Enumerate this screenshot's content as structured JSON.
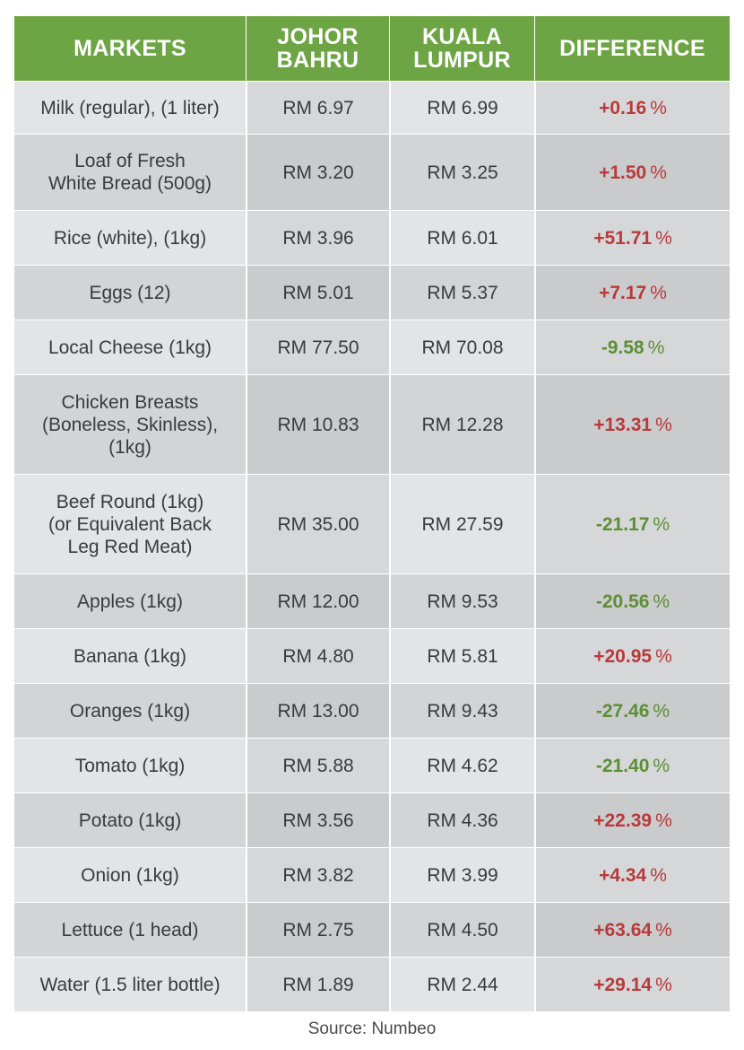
{
  "chart_data": {
    "type": "table",
    "columns": [
      "MARKETS",
      "JOHOR BAHRU",
      "KUALA LUMPUR",
      "DIFFERENCE"
    ],
    "header_lines": [
      [
        "MARKETS"
      ],
      [
        "JOHOR",
        "BAHRU"
      ],
      [
        "KUALA",
        "LUMPUR"
      ],
      [
        "DIFFERENCE"
      ]
    ],
    "rows": [
      {
        "item": "Milk (regular), (1 liter)",
        "jb": "RM 6.97",
        "kl": "RM 6.99",
        "diff": "+0.16",
        "unit": "%",
        "direction": "up"
      },
      {
        "item": "Loaf of Fresh White Bread (500g)",
        "jb": "RM 3.20",
        "kl": "RM 3.25",
        "diff": "+1.50",
        "unit": "%",
        "direction": "up"
      },
      {
        "item": "Rice (white), (1kg)",
        "jb": "RM 3.96",
        "kl": "RM 6.01",
        "diff": "+51.71",
        "unit": "%",
        "direction": "up"
      },
      {
        "item": "Eggs (12)",
        "jb": "RM 5.01",
        "kl": "RM 5.37",
        "diff": "+7.17",
        "unit": "%",
        "direction": "up"
      },
      {
        "item": "Local Cheese (1kg)",
        "jb": "RM 77.50",
        "kl": "RM 70.08",
        "diff": "-9.58",
        "unit": "%",
        "direction": "down"
      },
      {
        "item": "Chicken Breasts (Boneless, Skinless), (1kg)",
        "jb": "RM 10.83",
        "kl": "RM 12.28",
        "diff": "+13.31",
        "unit": "%",
        "direction": "up"
      },
      {
        "item": "Beef Round (1kg) (or Equivalent Back Leg Red Meat)",
        "jb": "RM 35.00",
        "kl": "RM 27.59",
        "diff": "-21.17",
        "unit": "%",
        "direction": "down"
      },
      {
        "item": "Apples (1kg)",
        "jb": "RM 12.00",
        "kl": "RM 9.53",
        "diff": "-20.56",
        "unit": "%",
        "direction": "down"
      },
      {
        "item": "Banana (1kg)",
        "jb": "RM 4.80",
        "kl": "RM 5.81",
        "diff": "+20.95",
        "unit": "%",
        "direction": "up"
      },
      {
        "item": "Oranges (1kg)",
        "jb": "RM 13.00",
        "kl": "RM 9.43",
        "diff": "-27.46",
        "unit": "%",
        "direction": "down"
      },
      {
        "item": "Tomato (1kg)",
        "jb": "RM 5.88",
        "kl": "RM 4.62",
        "diff": "-21.40",
        "unit": "%",
        "direction": "down"
      },
      {
        "item": "Potato (1kg)",
        "jb": "RM 3.56",
        "kl": "RM 4.36",
        "diff": "+22.39",
        "unit": "%",
        "direction": "up"
      },
      {
        "item": "Onion (1kg)",
        "jb": "RM 3.82",
        "kl": "RM 3.99",
        "diff": "+4.34",
        "unit": "%",
        "direction": "up"
      },
      {
        "item": "Lettuce (1 head)",
        "jb": "RM 2.75",
        "kl": "RM 4.50",
        "diff": "+63.64",
        "unit": "%",
        "direction": "up"
      },
      {
        "item": "Water (1.5 liter bottle)",
        "jb": "RM 1.89",
        "kl": "RM 2.44",
        "diff": "+29.14",
        "unit": "%",
        "direction": "up"
      }
    ],
    "colors": {
      "header_bg": "#6ea544",
      "increase": "#b83a3a",
      "decrease": "#5c8f35"
    }
  },
  "source": "Source: Numbeo"
}
